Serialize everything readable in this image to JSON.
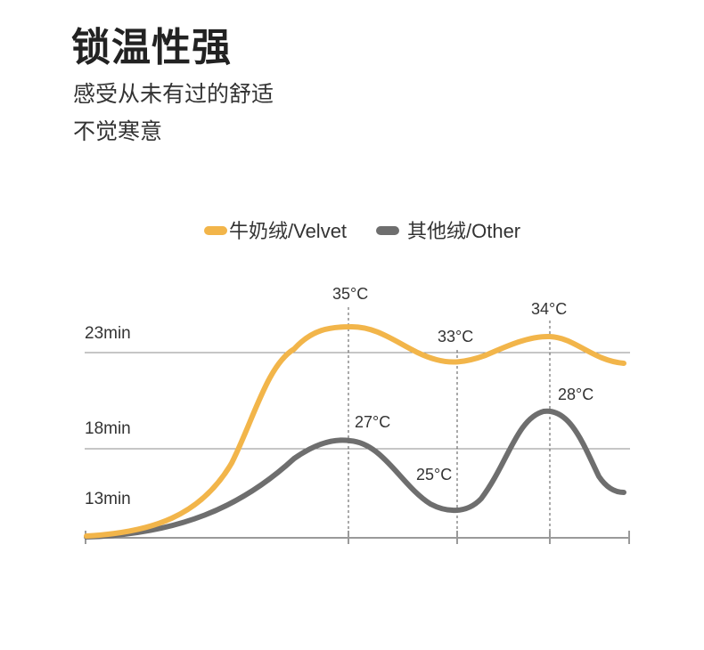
{
  "header": {
    "title": "锁温性强",
    "subtitle_line1": "感受从未有过的舒适",
    "subtitle_line2": "不觉寒意"
  },
  "chart_data": {
    "type": "line",
    "title": "",
    "xlabel": "",
    "ylabel": "",
    "y_tick_labels": [
      "23min",
      "18min",
      "13min"
    ],
    "legend": {
      "placement": "top-center",
      "entries": [
        {
          "label": "牛奶绒/Velvet",
          "color": "#f2b54a"
        },
        {
          "label": "其他绒/Other",
          "color": "#6e6e6e"
        }
      ]
    },
    "series": [
      {
        "name": "牛奶绒/Velvet",
        "color": "#f2b54a",
        "peaks": [
          {
            "label": "35°C",
            "value": 35
          },
          {
            "label": "33°C",
            "value": 33
          },
          {
            "label": "34°C",
            "value": 34
          }
        ]
      },
      {
        "name": "其他绒/Other",
        "color": "#6e6e6e",
        "peaks": [
          {
            "label": "27°C",
            "value": 27
          },
          {
            "label": "25°C",
            "value": 25
          },
          {
            "label": "28°C",
            "value": 28
          }
        ]
      }
    ],
    "grid": true
  }
}
